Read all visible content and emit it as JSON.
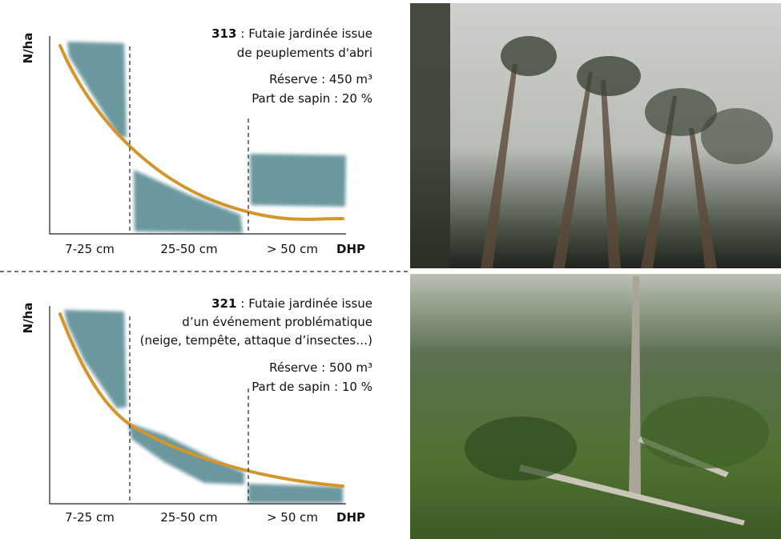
{
  "panels": [
    {
      "code": "313",
      "description": [
        ": Futaie jardinée issue",
        "de peuplements d'abri"
      ],
      "reserve": "Réserve : 450 m³",
      "fir_share": "Part de sapin : 20 %",
      "y_label": "N/ha",
      "x_labels": [
        "7-25 cm",
        "25-50 cm",
        "> 50 cm"
      ],
      "x_axis_label": "DHP"
    },
    {
      "code": "321",
      "description": [
        ": Futaie jardinée issue",
        "d’un événement problématique",
        "(neige, tempête, attaque d’insectes…)"
      ],
      "reserve": "Réserve : 500 m³",
      "fir_share": "Part de sapin : 10 %",
      "y_label": "N/ha",
      "x_labels": [
        "7-25 cm",
        "25-50 cm",
        "> 50 cm"
      ],
      "x_axis_label": "DHP"
    }
  ]
}
